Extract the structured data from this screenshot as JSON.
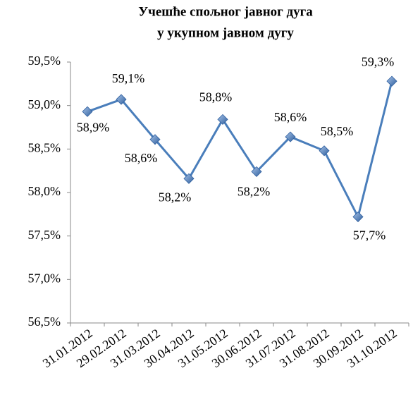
{
  "chart_data": {
    "type": "line",
    "title": [
      "Учешће спољног јавног дуга",
      "у укупном јавном дугу"
    ],
    "categories": [
      "31.01.2012",
      "29.02.2012",
      "31.03.2012",
      "30.04.2012",
      "31.05.2012",
      "30.06.2012",
      "31.07.2012",
      "31.08.2012",
      "30.09.2012",
      "31.10.2012"
    ],
    "values": [
      58.93,
      59.07,
      58.61,
      58.16,
      58.84,
      58.24,
      58.64,
      58.48,
      57.72,
      59.28
    ],
    "value_labels": [
      "58,9%",
      "59,1%",
      "58,6%",
      "58,2%",
      "58,8%",
      "58,2%",
      "58,6%",
      "58,5%",
      "57,7%",
      "59,3%"
    ],
    "color": "#4a7ebb",
    "ylim": [
      56.5,
      59.5
    ],
    "yticks": [
      {
        "value": 56.5,
        "label": "56,5%"
      },
      {
        "value": 57,
        "label": "57,0%"
      },
      {
        "value": 57.5,
        "label": "57,5%"
      },
      {
        "value": 58,
        "label": "58,0%"
      },
      {
        "value": 58.5,
        "label": "58,5%"
      },
      {
        "value": 59,
        "label": "59,0%"
      },
      {
        "value": 59.5,
        "label": "59,5%"
      }
    ]
  }
}
